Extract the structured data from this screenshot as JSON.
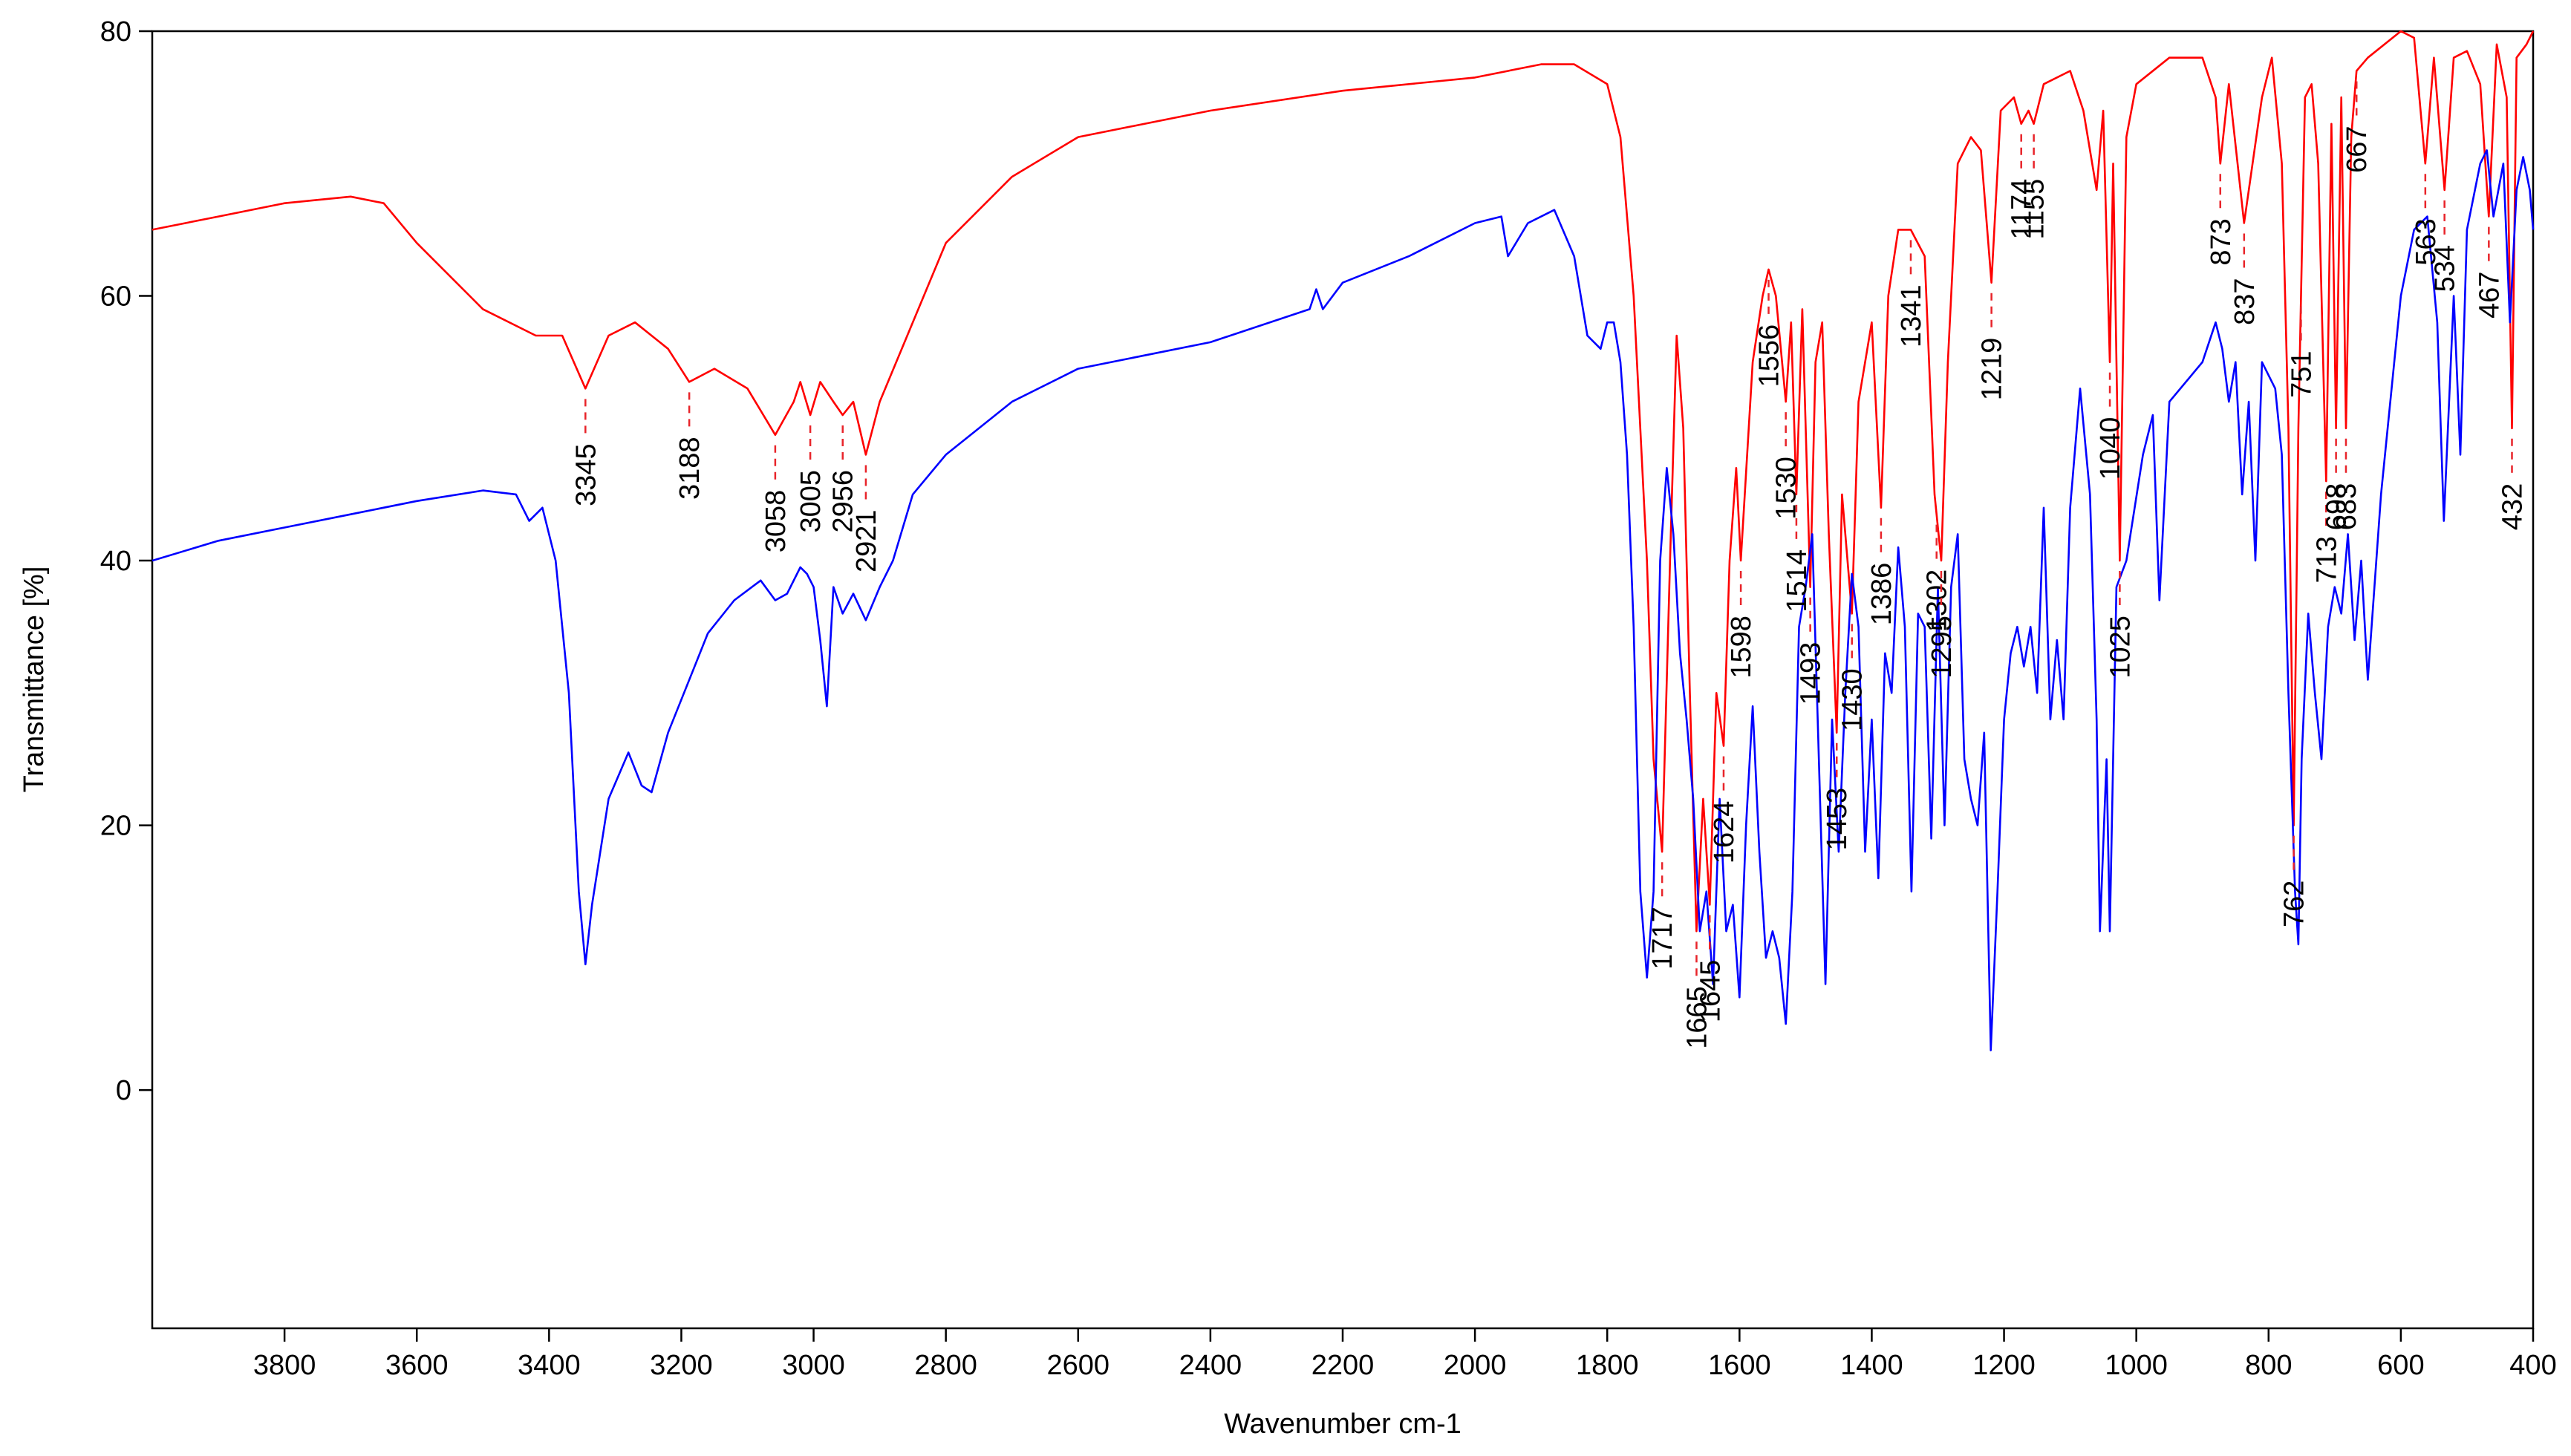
{
  "chart_data": {
    "type": "line",
    "xlabel": "Wavenumber cm-1",
    "ylabel": "Transmittance [%]",
    "xlim": [
      4000,
      400
    ],
    "ylim": [
      -18,
      80
    ],
    "xticks": [
      3800,
      3600,
      3400,
      3200,
      3000,
      2800,
      2600,
      2400,
      2200,
      2000,
      1800,
      1600,
      1400,
      1200,
      1000,
      800,
      600,
      400
    ],
    "yticks": [
      0,
      20,
      40,
      60,
      80
    ],
    "grid": false,
    "annotation_color": "#e8242a",
    "annotations": [
      3345,
      3188,
      3058,
      3005,
      2956,
      2921,
      1717,
      1665,
      1645,
      1624,
      1598,
      1556,
      1530,
      1514,
      1493,
      1453,
      1430,
      1386,
      1341,
      1302,
      1295,
      1219,
      1174,
      1155,
      1040,
      1025,
      873,
      837,
      762,
      751,
      713,
      698,
      683,
      667,
      563,
      534,
      467,
      432
    ],
    "series": [
      {
        "color": "#ff0000",
        "x": [
          4000,
          3900,
          3800,
          3700,
          3650,
          3600,
          3500,
          3420,
          3380,
          3345,
          3310,
          3270,
          3220,
          3188,
          3150,
          3100,
          3058,
          3030,
          3020,
          3005,
          2990,
          2970,
          2956,
          2940,
          2921,
          2900,
          2850,
          2800,
          2700,
          2600,
          2400,
          2200,
          2000,
          1900,
          1850,
          1800,
          1780,
          1760,
          1740,
          1730,
          1717,
          1705,
          1695,
          1685,
          1675,
          1665,
          1655,
          1645,
          1635,
          1624,
          1615,
          1605,
          1598,
          1580,
          1565,
          1556,
          1545,
          1530,
          1522,
          1514,
          1505,
          1493,
          1485,
          1475,
          1465,
          1453,
          1445,
          1430,
          1420,
          1400,
          1386,
          1375,
          1360,
          1341,
          1320,
          1305,
          1295,
          1285,
          1270,
          1250,
          1235,
          1219,
          1205,
          1185,
          1174,
          1163,
          1155,
          1140,
          1100,
          1080,
          1060,
          1050,
          1040,
          1035,
          1025,
          1015,
          1000,
          950,
          900,
          880,
          873,
          860,
          837,
          810,
          795,
          780,
          770,
          762,
          755,
          745,
          735,
          725,
          713,
          705,
          698,
          690,
          683,
          675,
          667,
          650,
          600,
          580,
          563,
          550,
          534,
          520,
          500,
          480,
          467,
          455,
          440,
          432,
          425,
          410,
          400
        ],
        "values": [
          65,
          66,
          67,
          67.5,
          67,
          64,
          59,
          57,
          57,
          53,
          57,
          58,
          56,
          53.5,
          54.5,
          53,
          49.5,
          52,
          53.5,
          51,
          53.5,
          52,
          51,
          52,
          48,
          52,
          58,
          64,
          69,
          72,
          74,
          75.5,
          76.5,
          77.5,
          77.5,
          76,
          72,
          60,
          40,
          25,
          18,
          40,
          57,
          50,
          30,
          12,
          22,
          14,
          30,
          26,
          40,
          47,
          40,
          55,
          60,
          62,
          60,
          52,
          58,
          45,
          59,
          38,
          55,
          58,
          42,
          27,
          45,
          36,
          52,
          58,
          44,
          60,
          65,
          65,
          63,
          45,
          40,
          55,
          70,
          72,
          71,
          61,
          74,
          75,
          73,
          74,
          73,
          76,
          77,
          74,
          68,
          74,
          55,
          70,
          40,
          72,
          76,
          78,
          78,
          75,
          70,
          76,
          65.5,
          75,
          78,
          70,
          50,
          20,
          50,
          75,
          76,
          70,
          46,
          73,
          50,
          75,
          50,
          72,
          77,
          78,
          80,
          79.5,
          70,
          78,
          68,
          78,
          78.5,
          76,
          66,
          79,
          75,
          50,
          78,
          79,
          80
        ]
      },
      {
        "color": "#0000ff",
        "x": [
          4000,
          3900,
          3800,
          3700,
          3600,
          3500,
          3450,
          3430,
          3410,
          3390,
          3370,
          3355,
          3345,
          3335,
          3310,
          3280,
          3260,
          3245,
          3220,
          3180,
          3160,
          3120,
          3080,
          3058,
          3040,
          3020,
          3010,
          3000,
          2990,
          2980,
          2970,
          2956,
          2940,
          2921,
          2900,
          2880,
          2850,
          2800,
          2700,
          2600,
          2400,
          2250,
          2240,
          2230,
          2200,
          2100,
          2000,
          1960,
          1950,
          1920,
          1880,
          1850,
          1830,
          1810,
          1800,
          1790,
          1780,
          1770,
          1760,
          1750,
          1740,
          1730,
          1720,
          1710,
          1700,
          1690,
          1680,
          1670,
          1660,
          1650,
          1640,
          1630,
          1620,
          1610,
          1600,
          1590,
          1580,
          1570,
          1560,
          1550,
          1540,
          1530,
          1520,
          1510,
          1500,
          1490,
          1480,
          1470,
          1460,
          1450,
          1440,
          1430,
          1420,
          1410,
          1400,
          1390,
          1380,
          1370,
          1360,
          1350,
          1340,
          1330,
          1320,
          1310,
          1300,
          1290,
          1280,
          1270,
          1260,
          1250,
          1240,
          1230,
          1220,
          1210,
          1200,
          1190,
          1180,
          1170,
          1160,
          1150,
          1140,
          1130,
          1120,
          1110,
          1100,
          1085,
          1070,
          1060,
          1055,
          1045,
          1040,
          1030,
          1015,
          990,
          975,
          965,
          950,
          900,
          880,
          870,
          860,
          850,
          840,
          830,
          820,
          810,
          790,
          780,
          770,
          760,
          755,
          750,
          740,
          730,
          720,
          710,
          700,
          690,
          680,
          670,
          660,
          650,
          630,
          600,
          580,
          560,
          545,
          535,
          520,
          510,
          500,
          480,
          470,
          460,
          445,
          435,
          425,
          415,
          405,
          400
        ],
        "values": [
          40,
          41.5,
          42.5,
          43.5,
          44.5,
          45.3,
          45,
          43,
          44,
          40,
          30,
          15,
          9.5,
          14,
          22,
          25.5,
          23,
          22.5,
          27,
          32,
          34.5,
          37,
          38.5,
          37,
          37.5,
          39.5,
          39,
          38,
          34,
          29,
          38,
          36,
          37.5,
          35.5,
          38,
          40,
          45,
          48,
          52,
          54.5,
          56.5,
          59,
          60.5,
          59,
          61,
          63,
          65.5,
          66,
          63,
          65.5,
          66.5,
          63,
          57,
          56,
          58,
          58,
          55,
          48,
          35,
          15,
          8.5,
          15,
          40,
          47,
          42,
          33,
          28,
          22,
          12,
          15,
          8,
          22,
          12,
          14,
          7,
          20,
          29,
          18,
          10,
          12,
          10,
          5,
          15,
          35,
          38,
          42,
          25,
          8,
          28,
          18,
          30,
          39,
          35,
          18,
          28,
          16,
          33,
          30,
          41,
          35,
          15,
          36,
          35,
          19,
          38,
          20,
          38,
          42,
          25,
          22,
          20,
          27,
          3,
          15,
          28,
          33,
          35,
          32,
          35,
          30,
          44,
          28,
          34,
          28,
          44,
          53,
          45,
          28,
          12,
          25,
          12,
          38,
          40,
          48,
          51,
          37,
          52,
          55,
          58,
          56,
          52,
          55,
          45,
          52,
          40,
          55,
          53,
          48,
          30,
          15,
          11,
          25,
          36,
          30,
          25,
          35,
          38,
          36,
          42,
          34,
          40,
          31,
          45,
          60,
          65,
          66,
          58,
          43,
          60,
          48,
          65,
          70,
          71,
          66,
          70,
          58,
          68,
          70.5,
          68,
          65
        ]
      }
    ]
  }
}
